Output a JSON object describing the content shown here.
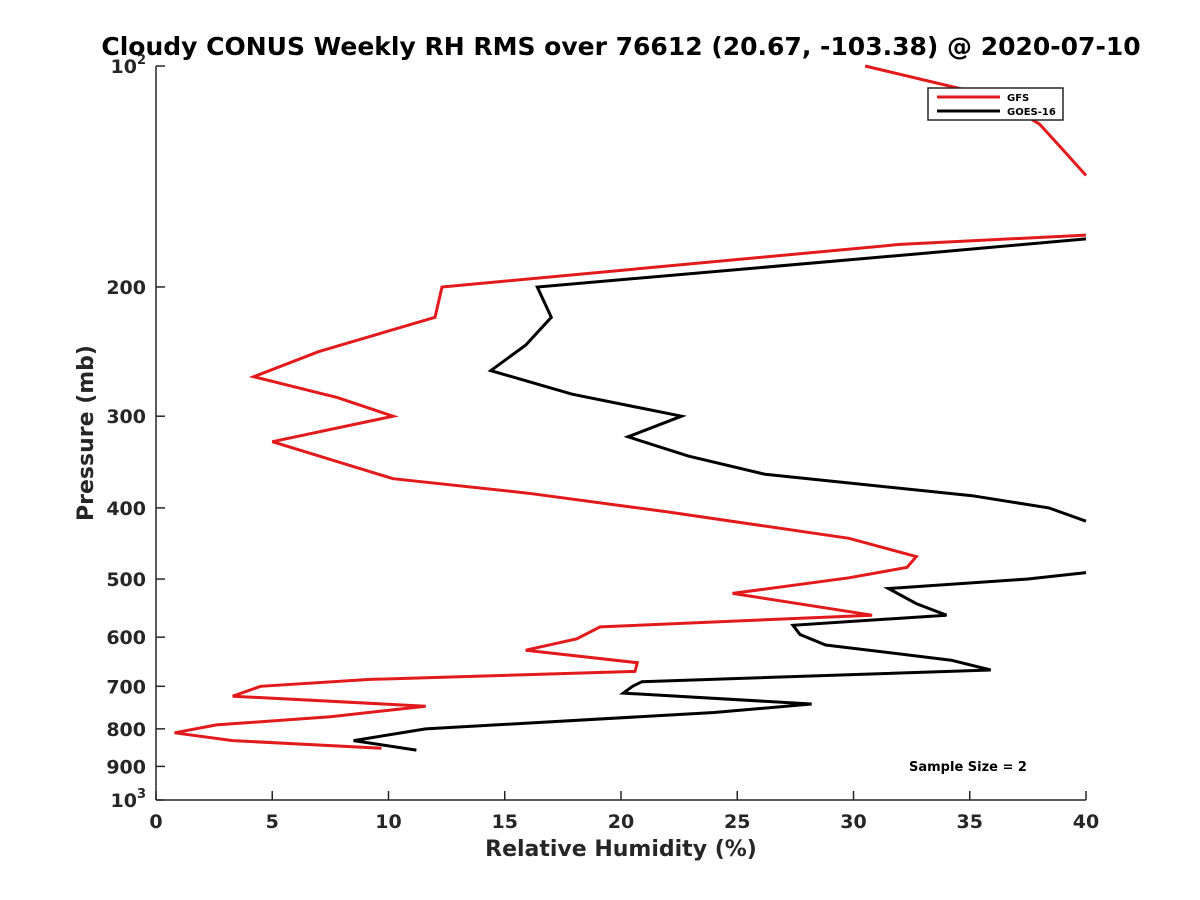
{
  "chart_data": {
    "type": "line",
    "title": "Cloudy CONUS Weekly RH RMS over 76612 (20.67, -103.38) @ 2020-07-10",
    "xlabel": "Relative Humidity (%)",
    "ylabel": "Pressure (mb)",
    "xlim": [
      0,
      40
    ],
    "ylim": [
      100,
      1000
    ],
    "yscale": "log",
    "y_reversed": true,
    "x_ticks": [
      0,
      5,
      10,
      15,
      20,
      25,
      30,
      35,
      40
    ],
    "x_tick_labels": [
      "0",
      "5",
      "10",
      "15",
      "20",
      "25",
      "30",
      "35",
      "40"
    ],
    "y_ticks": [
      100,
      200,
      300,
      400,
      500,
      600,
      700,
      800,
      900,
      1000
    ],
    "y_tick_labels": [
      {
        "base": "10",
        "exp": "2"
      },
      {
        "base": "200",
        "exp": ""
      },
      {
        "base": "300",
        "exp": ""
      },
      {
        "base": "400",
        "exp": ""
      },
      {
        "base": "500",
        "exp": ""
      },
      {
        "base": "600",
        "exp": ""
      },
      {
        "base": "700",
        "exp": ""
      },
      {
        "base": "800",
        "exp": ""
      },
      {
        "base": "900",
        "exp": ""
      },
      {
        "base": "10",
        "exp": "3"
      }
    ],
    "grid": false,
    "legend_position": "top-right",
    "annotation": "Sample Size = 2",
    "series": [
      {
        "name": "GFS",
        "color": "#e31a1c",
        "segments": [
          {
            "x": [
              30.5,
              36.0,
              38.0,
              39.0,
              40.0
            ],
            "y": [
              100,
              110,
              120,
              130,
              141
            ]
          },
          {
            "x": [
              40.0,
              32.0,
              12.3,
              12.0,
              7.0,
              4.2,
              7.8,
              10.2,
              5.0,
              10.2,
              16.0,
              22.0,
              29.8,
              32.7,
              32.3,
              29.8,
              24.8,
              30.8,
              19.1,
              18.1,
              15.9,
              20.7,
              20.6,
              9.2,
              4.5,
              3.3,
              11.6,
              7.5,
              2.6,
              0.8,
              3.3,
              9.7
            ],
            "y": [
              170,
              175,
              200,
              220,
              245,
              265,
              283,
              300,
              325,
              365,
              382,
              405,
              440,
              466,
              482,
              498,
              523,
              560,
              581,
              603,
              625,
              650,
              668,
              685,
              700,
              722,
              745,
              770,
              790,
              810,
              830,
              850
            ]
          }
        ]
      },
      {
        "name": "GOES-16",
        "color": "#000000",
        "segments": [
          {
            "x": [
              40.0,
              33.0,
              16.4,
              17.0,
              15.9,
              14.4,
              17.9,
              22.6,
              20.3,
              22.9,
              26.2,
              35.1,
              38.4,
              40.0
            ],
            "y": [
              172,
              180,
              200,
              220,
              240,
              260,
              280,
              300,
              320,
              340,
              360,
              385,
              400,
              417
            ]
          },
          {
            "x": [
              40.0,
              37.5,
              31.5,
              32.7,
              34.0,
              27.4,
              27.7,
              28.8,
              34.2,
              35.9,
              20.9,
              20.5,
              20.1,
              28.2,
              24.0,
              11.6,
              8.5,
              11.2
            ],
            "y": [
              490,
              500,
              515,
              540,
              560,
              578,
              595,
              615,
              645,
              665,
              690,
              700,
              715,
              740,
              760,
              800,
              830,
              855
            ]
          }
        ]
      }
    ]
  }
}
